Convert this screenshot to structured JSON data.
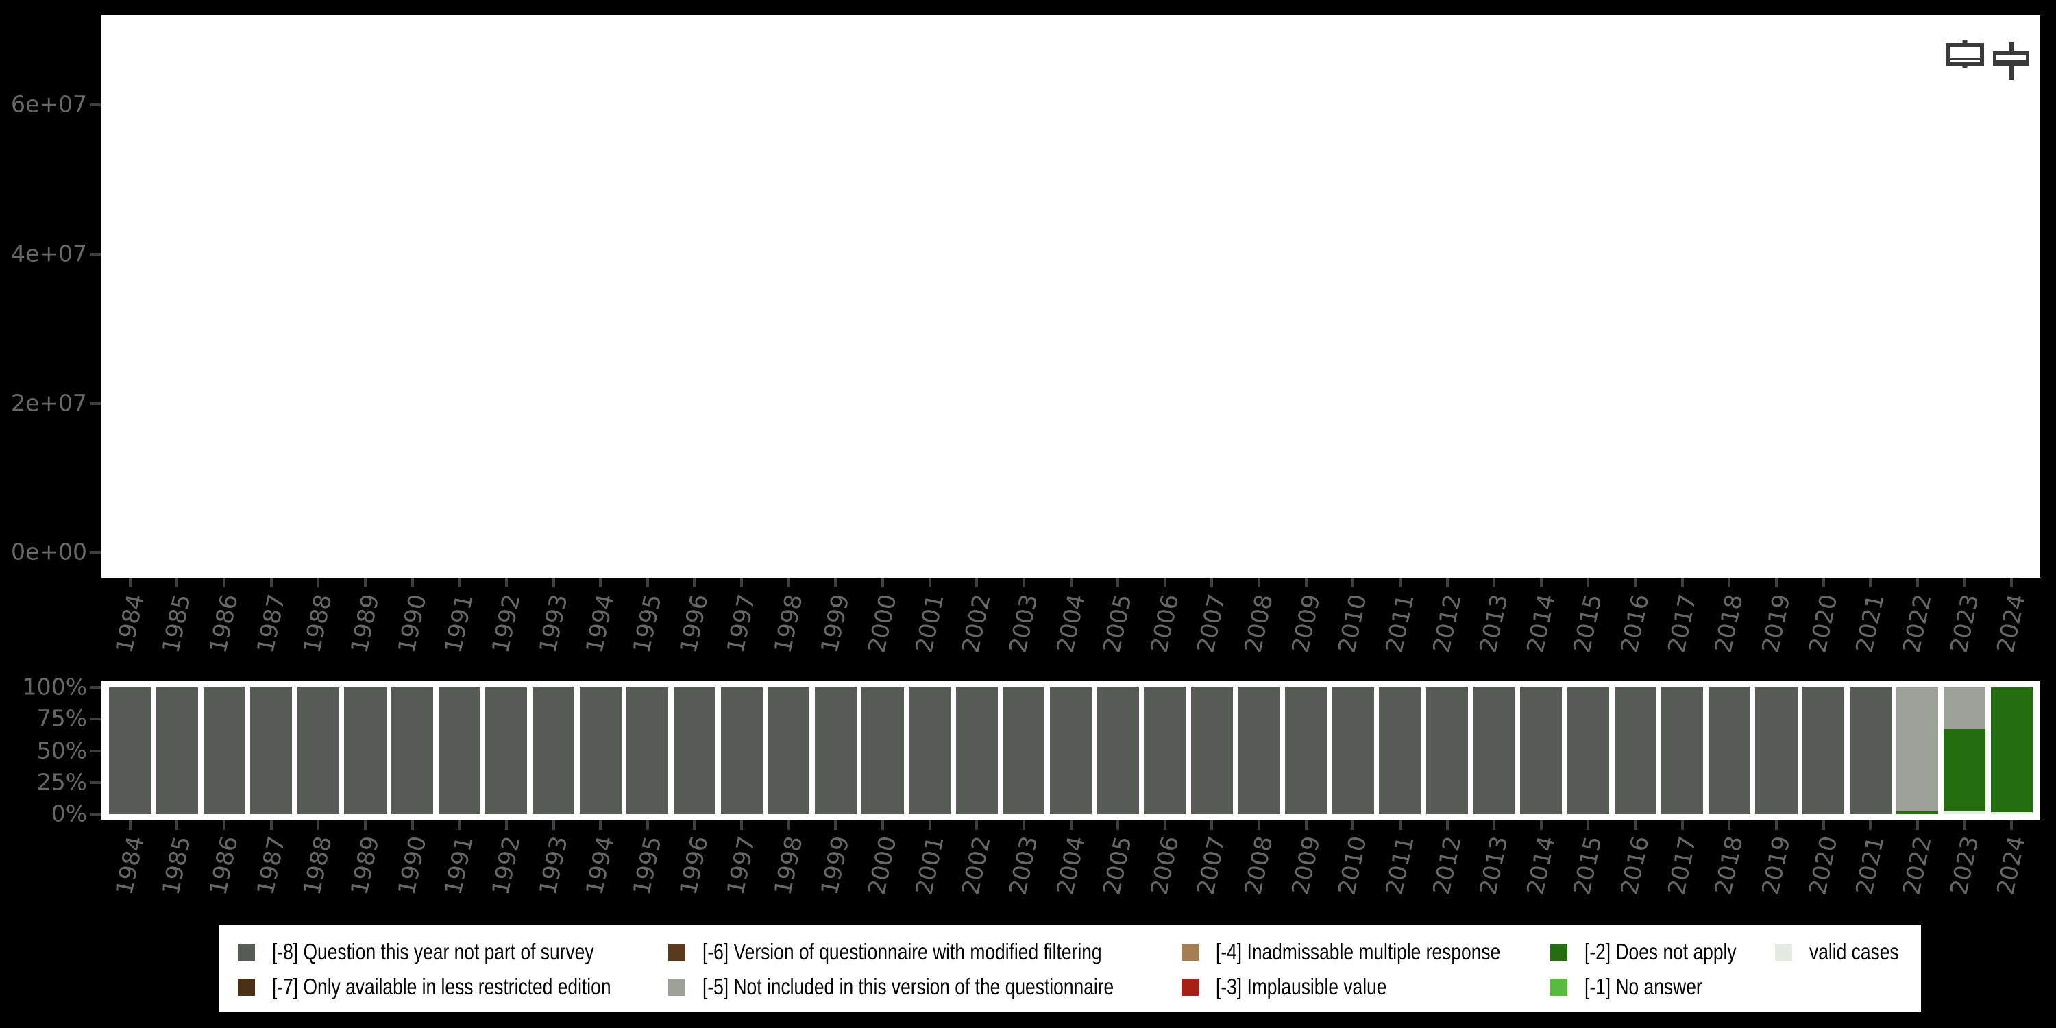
{
  "palette": {
    "background": "#000000",
    "panel": "#ffffff",
    "axis_text": "#686868",
    "tick_mark": "#3f3f3f",
    "legend_text": "#000000",
    "icon": "#3a3a3a",
    "categories": {
      "m8": {
        "label": "[-8] Question this year not part of survey",
        "color": "#565c55"
      },
      "m7": {
        "label": "[-7] Only available in less restricted edition",
        "color": "#4c3016"
      },
      "m6": {
        "label": "[-6] Version of questionnaire with modified filtering",
        "color": "#5a3a1d"
      },
      "m5": {
        "label": "[-5] Not included in this version of the questionnaire",
        "color": "#9da199"
      },
      "m4": {
        "label": "[-4] Inadmissable multiple response",
        "color": "#a37f53"
      },
      "m3": {
        "label": "[-3] Implausible value",
        "color": "#a52115"
      },
      "m2": {
        "label": "[-2] Does not apply",
        "color": "#256e10"
      },
      "m1": {
        "label": "[-1] No answer",
        "color": "#58bb3f"
      },
      "valid": {
        "label": "valid cases",
        "color": "#e4e9e2"
      }
    }
  },
  "toolbar": {
    "icons": [
      "boxplot-icon",
      "boxplot-whiskers-icon"
    ]
  },
  "legend": {
    "columns": [
      [
        "m8",
        "m7"
      ],
      [
        "m6",
        "m5"
      ],
      [
        "m4",
        "m3"
      ],
      [
        "m2",
        "m1"
      ],
      [
        "valid"
      ]
    ]
  },
  "chart_data": [
    {
      "type": "bar",
      "title": "",
      "xlabel": "",
      "ylabel": "",
      "ytick_labels": [
        "6e+07",
        "4e+07",
        "2e+07",
        "0e+00"
      ],
      "ylim": [
        0,
        60000000
      ],
      "grid": false,
      "categories": [
        1984,
        1985,
        1986,
        1987,
        1988,
        1989,
        1990,
        1991,
        1992,
        1993,
        1994,
        1995,
        1996,
        1997,
        1998,
        1999,
        2000,
        2001,
        2002,
        2003,
        2004,
        2005,
        2006,
        2007,
        2008,
        2009,
        2010,
        2011,
        2012,
        2013,
        2014,
        2015,
        2016,
        2017,
        2018,
        2019,
        2020,
        2021,
        2022,
        2023,
        2024
      ],
      "series": [],
      "note": "panel is empty - no bars visible"
    },
    {
      "type": "bar",
      "stacked": true,
      "unit": "percent",
      "title": "",
      "xlabel": "",
      "ylabel": "",
      "ytick_labels": [
        "100%",
        "75%",
        "50%",
        "25%",
        "0%"
      ],
      "ylim": [
        0,
        100
      ],
      "grid": false,
      "legend_position": "bottom",
      "categories": [
        1984,
        1985,
        1986,
        1987,
        1988,
        1989,
        1990,
        1991,
        1992,
        1993,
        1994,
        1995,
        1996,
        1997,
        1998,
        1999,
        2000,
        2001,
        2002,
        2003,
        2004,
        2005,
        2006,
        2007,
        2008,
        2009,
        2010,
        2011,
        2012,
        2013,
        2014,
        2015,
        2016,
        2017,
        2018,
        2019,
        2020,
        2021,
        2022,
        2023,
        2024
      ],
      "bars": [
        {
          "year": 1984,
          "segments": [
            [
              "m8",
              100
            ]
          ]
        },
        {
          "year": 1985,
          "segments": [
            [
              "m8",
              100
            ]
          ]
        },
        {
          "year": 1986,
          "segments": [
            [
              "m8",
              100
            ]
          ]
        },
        {
          "year": 1987,
          "segments": [
            [
              "m8",
              100
            ]
          ]
        },
        {
          "year": 1988,
          "segments": [
            [
              "m8",
              100
            ]
          ]
        },
        {
          "year": 1989,
          "segments": [
            [
              "m8",
              100
            ]
          ]
        },
        {
          "year": 1990,
          "segments": [
            [
              "m8",
              100
            ]
          ]
        },
        {
          "year": 1991,
          "segments": [
            [
              "m8",
              100
            ]
          ]
        },
        {
          "year": 1992,
          "segments": [
            [
              "m8",
              100
            ]
          ]
        },
        {
          "year": 1993,
          "segments": [
            [
              "m8",
              100
            ]
          ]
        },
        {
          "year": 1994,
          "segments": [
            [
              "m8",
              100
            ]
          ]
        },
        {
          "year": 1995,
          "segments": [
            [
              "m8",
              100
            ]
          ]
        },
        {
          "year": 1996,
          "segments": [
            [
              "m8",
              100
            ]
          ]
        },
        {
          "year": 1997,
          "segments": [
            [
              "m8",
              100
            ]
          ]
        },
        {
          "year": 1998,
          "segments": [
            [
              "m8",
              100
            ]
          ]
        },
        {
          "year": 1999,
          "segments": [
            [
              "m8",
              100
            ]
          ]
        },
        {
          "year": 2000,
          "segments": [
            [
              "m8",
              100
            ]
          ]
        },
        {
          "year": 2001,
          "segments": [
            [
              "m8",
              100
            ]
          ]
        },
        {
          "year": 2002,
          "segments": [
            [
              "m8",
              100
            ]
          ]
        },
        {
          "year": 2003,
          "segments": [
            [
              "m8",
              100
            ]
          ]
        },
        {
          "year": 2004,
          "segments": [
            [
              "m8",
              100
            ]
          ]
        },
        {
          "year": 2005,
          "segments": [
            [
              "m8",
              100
            ]
          ]
        },
        {
          "year": 2006,
          "segments": [
            [
              "m8",
              100
            ]
          ]
        },
        {
          "year": 2007,
          "segments": [
            [
              "m8",
              100
            ]
          ]
        },
        {
          "year": 2008,
          "segments": [
            [
              "m8",
              100
            ]
          ]
        },
        {
          "year": 2009,
          "segments": [
            [
              "m8",
              100
            ]
          ]
        },
        {
          "year": 2010,
          "segments": [
            [
              "m8",
              100
            ]
          ]
        },
        {
          "year": 2011,
          "segments": [
            [
              "m8",
              100
            ]
          ]
        },
        {
          "year": 2012,
          "segments": [
            [
              "m8",
              100
            ]
          ]
        },
        {
          "year": 2013,
          "segments": [
            [
              "m8",
              100
            ]
          ]
        },
        {
          "year": 2014,
          "segments": [
            [
              "m8",
              100
            ]
          ]
        },
        {
          "year": 2015,
          "segments": [
            [
              "m8",
              100
            ]
          ]
        },
        {
          "year": 2016,
          "segments": [
            [
              "m8",
              100
            ]
          ]
        },
        {
          "year": 2017,
          "segments": [
            [
              "m8",
              100
            ]
          ]
        },
        {
          "year": 2018,
          "segments": [
            [
              "m8",
              100
            ]
          ]
        },
        {
          "year": 2019,
          "segments": [
            [
              "m8",
              100
            ]
          ]
        },
        {
          "year": 2020,
          "segments": [
            [
              "m8",
              100
            ]
          ]
        },
        {
          "year": 2021,
          "segments": [
            [
              "m8",
              100
            ]
          ]
        },
        {
          "year": 2022,
          "segments": [
            [
              "m5",
              97.8
            ],
            [
              "m2",
              2.2
            ]
          ]
        },
        {
          "year": 2023,
          "segments": [
            [
              "m5",
              33.2
            ],
            [
              "m2",
              64.1
            ],
            [
              "valid",
              2.7
            ]
          ]
        },
        {
          "year": 2024,
          "segments": [
            [
              "m2",
              98.4
            ],
            [
              "valid",
              1.6
            ]
          ]
        }
      ]
    }
  ]
}
